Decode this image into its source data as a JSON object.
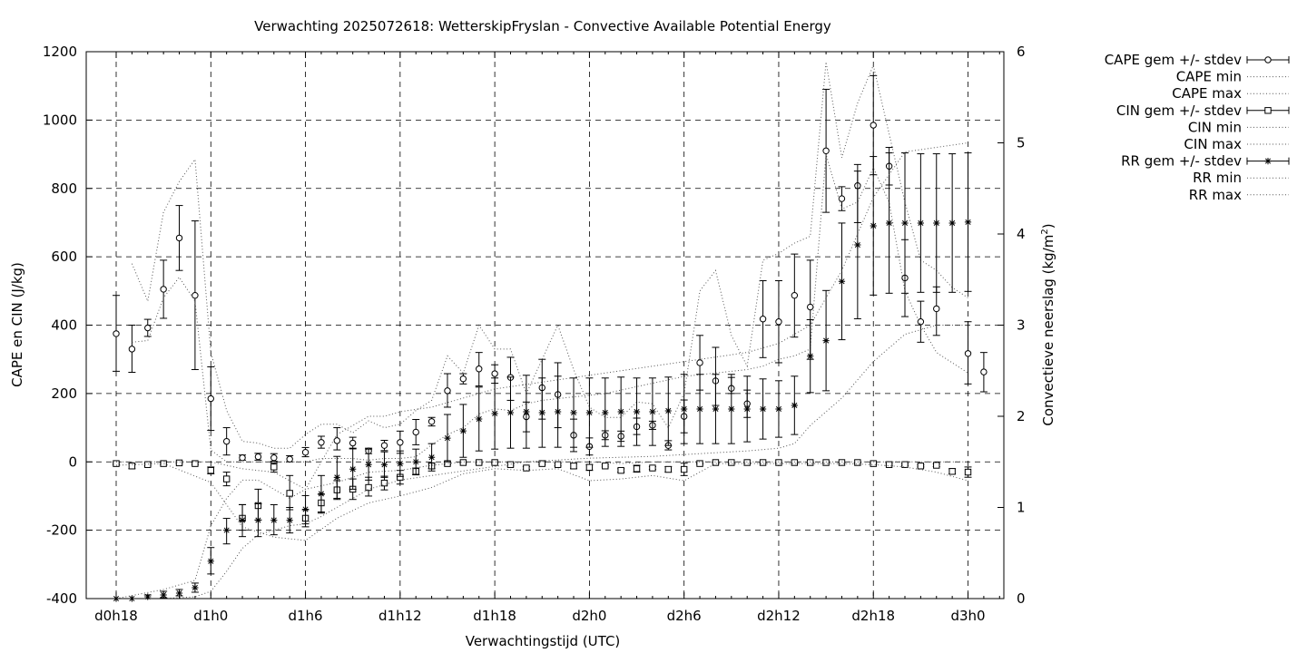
{
  "chart_data": {
    "type": "line",
    "title": "Verwachting 2025072618: WetterskipFryslan - Convective Available Potential Energy",
    "xlabel": "Verwachtingstijd (UTC)",
    "ylabel": "CAPE en CIN (J/kg)",
    "y2label_main": "Convectieve neerslag (kg/m",
    "y2label_sup": "2",
    "y2label_end": ")",
    "x_unit": "hours since d0h18",
    "xlim": [
      -0.5,
      57.5
    ],
    "ylim": [
      -400,
      1200
    ],
    "y2lim": [
      0,
      6
    ],
    "grid": true,
    "legend_position": "top-right outside",
    "x_ticks": [
      {
        "x": 0,
        "label": "d0h18"
      },
      {
        "x": 6,
        "label": "d1h0"
      },
      {
        "x": 12,
        "label": "d1h6"
      },
      {
        "x": 18,
        "label": "d1h12"
      },
      {
        "x": 24,
        "label": "d1h18"
      },
      {
        "x": 30,
        "label": "d2h0"
      },
      {
        "x": 36,
        "label": "d2h6"
      },
      {
        "x": 42,
        "label": "d2h12"
      },
      {
        "x": 48,
        "label": "d2h18"
      },
      {
        "x": 54,
        "label": "d3h0"
      }
    ],
    "y_ticks": [
      "-400",
      "-200",
      "0",
      "200",
      "400",
      "600",
      "800",
      "1000",
      "1200"
    ],
    "y2_ticks": [
      "0",
      "1",
      "2",
      "3",
      "4",
      "5",
      "6"
    ],
    "legend": [
      "CAPE gem +/- stdev",
      "CAPE min",
      "CAPE max",
      "CIN gem +/- stdev",
      "CIN min",
      "CIN max",
      "RR gem +/- stdev",
      "RR min",
      "RR max"
    ],
    "series": [
      {
        "name": "CAPE gem +/- stdev",
        "marker": "circle",
        "axis": "y",
        "x": [
          0,
          1,
          2,
          3,
          4,
          5,
          6,
          7,
          8,
          9,
          10,
          11,
          12,
          13,
          14,
          15,
          16,
          17,
          18,
          19,
          20,
          21,
          22,
          23,
          24,
          25,
          26,
          27,
          28,
          29,
          30,
          31,
          32,
          33,
          34,
          35,
          36,
          37,
          38,
          39,
          40,
          41,
          42,
          43,
          44,
          45,
          46,
          47,
          48,
          49,
          50,
          51,
          52,
          54,
          55
        ],
        "mean": [
          375,
          330,
          392,
          505,
          655,
          487,
          185,
          60,
          12,
          15,
          12,
          8,
          28,
          57,
          62,
          55,
          32,
          48,
          57,
          87,
          118,
          208,
          243,
          272,
          258,
          247,
          132,
          217,
          197,
          78,
          45,
          78,
          75,
          103,
          107,
          48,
          133,
          290,
          237,
          215,
          170,
          418,
          410,
          487,
          453,
          910,
          770,
          808,
          985,
          865,
          538,
          410,
          448,
          317,
          263
        ],
        "low": [
          265,
          262,
          367,
          420,
          560,
          270,
          92,
          20,
          5,
          5,
          2,
          0,
          15,
          40,
          35,
          38,
          24,
          33,
          25,
          50,
          105,
          160,
          228,
          222,
          230,
          180,
          88,
          125,
          100,
          30,
          20,
          65,
          60,
          80,
          95,
          35,
          85,
          210,
          165,
          200,
          130,
          305,
          290,
          365,
          300,
          730,
          735,
          700,
          840,
          810,
          425,
          350,
          370,
          228,
          205
        ],
        "high": [
          487,
          400,
          417,
          590,
          750,
          705,
          278,
          100,
          20,
          25,
          24,
          18,
          42,
          75,
          100,
          72,
          40,
          63,
          90,
          124,
          130,
          258,
          258,
          320,
          284,
          306,
          175,
          300,
          290,
          125,
          70,
          91,
          90,
          128,
          119,
          62,
          181,
          370,
          335,
          247,
          210,
          530,
          530,
          608,
          590,
          1090,
          805,
          870,
          1130,
          920,
          650,
          470,
          512,
          410,
          320
        ]
      },
      {
        "name": "CAPE max",
        "marker": "none",
        "axis": "y",
        "x": [
          1,
          2,
          3,
          4,
          5,
          6,
          7,
          8,
          9,
          10,
          11,
          12,
          13,
          14,
          15,
          16,
          17,
          18,
          19,
          20,
          21,
          22,
          23,
          24,
          25,
          26,
          27,
          28,
          29,
          30,
          31,
          32,
          33,
          34,
          35,
          36,
          37,
          38,
          39,
          40,
          41,
          42,
          43,
          44,
          45,
          46,
          47,
          48,
          49,
          50,
          51,
          52,
          53,
          54
        ],
        "y": [
          580,
          470,
          730,
          820,
          885,
          320,
          150,
          60,
          55,
          40,
          40,
          80,
          110,
          110,
          85,
          120,
          100,
          110,
          150,
          180,
          310,
          260,
          400,
          330,
          330,
          200,
          300,
          400,
          270,
          160,
          130,
          130,
          175,
          170,
          100,
          200,
          500,
          560,
          370,
          280,
          590,
          610,
          640,
          660,
          1170,
          890,
          1050,
          1160,
          960,
          760,
          590,
          560,
          510,
          480
        ]
      },
      {
        "name": "CAPE min",
        "marker": "none",
        "axis": "y",
        "x": [
          1,
          2,
          3,
          4,
          5,
          6,
          7,
          8,
          9,
          10,
          11,
          12,
          13,
          14,
          15,
          16,
          17,
          18,
          19,
          20,
          21,
          22,
          23,
          24,
          25,
          26,
          27,
          28,
          29,
          30,
          31,
          32,
          33,
          34,
          35,
          36,
          37,
          38,
          39,
          40,
          41,
          42,
          43,
          44,
          45,
          46,
          47,
          48,
          49,
          50,
          51,
          52,
          53,
          54
        ],
        "y": [
          350,
          355,
          480,
          540,
          470,
          35,
          0,
          0,
          0,
          0,
          0,
          0,
          10,
          10,
          10,
          5,
          10,
          10,
          15,
          50,
          80,
          100,
          140,
          155,
          150,
          170,
          180,
          185,
          190,
          195,
          200,
          210,
          220,
          230,
          240,
          250,
          255,
          260,
          265,
          270,
          280,
          300,
          310,
          330,
          900,
          740,
          760,
          860,
          760,
          500,
          400,
          320,
          290,
          260
        ]
      },
      {
        "name": "CIN gem +/- stdev",
        "marker": "square",
        "axis": "y",
        "x": [
          0,
          1,
          2,
          3,
          4,
          5,
          6,
          7,
          8,
          9,
          10,
          11,
          12,
          13,
          14,
          15,
          16,
          17,
          18,
          19,
          20,
          21,
          22,
          23,
          24,
          25,
          26,
          27,
          28,
          29,
          30,
          31,
          32,
          33,
          34,
          35,
          36,
          37,
          38,
          39,
          40,
          41,
          42,
          43,
          44,
          45,
          46,
          47,
          48,
          49,
          50,
          51,
          52,
          53,
          54
        ],
        "mean": [
          -5,
          -12,
          -8,
          -5,
          -3,
          -5,
          -25,
          -50,
          -165,
          -128,
          -15,
          -92,
          -165,
          -120,
          -82,
          -80,
          -75,
          -62,
          -45,
          -28,
          -12,
          -5,
          -2,
          -2,
          -2,
          -8,
          -18,
          -5,
          -8,
          -12,
          -16,
          -12,
          -25,
          -20,
          -18,
          -22,
          -22,
          -5,
          -2,
          -2,
          -2,
          -2,
          -2,
          -2,
          -2,
          -2,
          -2,
          -2,
          -5,
          -8,
          -8,
          -12,
          -10,
          -28,
          -30
        ],
        "low": [
          -8,
          -20,
          -12,
          -8,
          -5,
          -8,
          -35,
          -70,
          -200,
          -170,
          -30,
          -140,
          -190,
          -150,
          -110,
          -110,
          -100,
          -82,
          -65,
          -38,
          -20,
          -8,
          -4,
          -4,
          -4,
          -12,
          -22,
          -8,
          -12,
          -20,
          -25,
          -15,
          -30,
          -30,
          -22,
          -30,
          -40,
          -7,
          -3,
          -3,
          -3,
          -3,
          -3,
          -3,
          -3,
          -3,
          -3,
          -3,
          -7,
          -11,
          -11,
          -15,
          -14,
          -35,
          -45
        ],
        "high": [
          -2,
          -5,
          -4,
          -2,
          0,
          -2,
          -15,
          -30,
          -125,
          -80,
          -3,
          -40,
          -140,
          -95,
          -55,
          -50,
          -45,
          -42,
          -25,
          -18,
          -3,
          0,
          0,
          0,
          0,
          -4,
          -14,
          -2,
          -4,
          -5,
          -8,
          -9,
          -20,
          -10,
          -14,
          -14,
          -4,
          -3,
          -1,
          -1,
          -1,
          -1,
          -1,
          -1,
          -1,
          -1,
          -1,
          -1,
          -3,
          -5,
          -5,
          -9,
          -6,
          -20,
          -15
        ]
      },
      {
        "name": "CIN min",
        "marker": "none",
        "axis": "y",
        "x": [
          0,
          3,
          6,
          8,
          10,
          12,
          14,
          16,
          18,
          20,
          22,
          24,
          26,
          28,
          30,
          32,
          34,
          36,
          38,
          40,
          42,
          44,
          46,
          48,
          50,
          52,
          54
        ],
        "y": [
          -10,
          -5,
          -60,
          -190,
          -220,
          -230,
          -165,
          -120,
          -100,
          -75,
          -35,
          -20,
          -25,
          -20,
          -55,
          -50,
          -40,
          -55,
          -5,
          -5,
          -5,
          -5,
          -5,
          -8,
          -15,
          -30,
          -55
        ]
      },
      {
        "name": "CIN max",
        "marker": "none",
        "axis": "y",
        "x": [
          0,
          6,
          8,
          10,
          12,
          14,
          16,
          18,
          20,
          22,
          24,
          26,
          28,
          30,
          32,
          34,
          36,
          38,
          40,
          42,
          44,
          46,
          48,
          50,
          52,
          54
        ],
        "y": [
          0,
          0,
          -20,
          -30,
          -80,
          -60,
          -30,
          -25,
          -10,
          0,
          0,
          0,
          0,
          0,
          -5,
          0,
          0,
          0,
          0,
          0,
          0,
          0,
          0,
          0,
          0,
          0
        ]
      },
      {
        "name": "RR gem +/- stdev",
        "marker": "star",
        "axis": "y2",
        "x": [
          0,
          1,
          2,
          3,
          4,
          5,
          6,
          7,
          8,
          9,
          10,
          11,
          12,
          13,
          14,
          15,
          16,
          17,
          18,
          19,
          20,
          21,
          22,
          23,
          24,
          25,
          26,
          27,
          28,
          29,
          30,
          31,
          32,
          33,
          34,
          35,
          36,
          37,
          38,
          39,
          40,
          41,
          42,
          43,
          44,
          45,
          46,
          47,
          48,
          49,
          50,
          51,
          52,
          53,
          54
        ],
        "mean": [
          0.0,
          0.0,
          0.02,
          0.04,
          0.06,
          0.12,
          0.41,
          0.75,
          0.86,
          0.86,
          0.86,
          0.86,
          0.98,
          1.15,
          1.33,
          1.42,
          1.47,
          1.47,
          1.48,
          1.5,
          1.55,
          1.76,
          1.84,
          1.97,
          2.03,
          2.04,
          2.05,
          2.04,
          2.05,
          2.04,
          2.04,
          2.04,
          2.05,
          2.05,
          2.05,
          2.06,
          2.08,
          2.08,
          2.08,
          2.08,
          2.08,
          2.08,
          2.08,
          2.12,
          2.66,
          2.83,
          3.48,
          3.88,
          4.09,
          4.12,
          4.12,
          4.12,
          4.12,
          4.12,
          4.13
        ],
        "low": [
          0,
          0,
          0,
          0.01,
          0.03,
          0.07,
          0.27,
          0.6,
          0.68,
          0.68,
          0.7,
          0.72,
          0.82,
          0.95,
          1.1,
          1.2,
          1.3,
          1.33,
          1.34,
          1.36,
          1.4,
          1.5,
          1.55,
          1.62,
          1.64,
          1.65,
          1.65,
          1.66,
          1.66,
          1.66,
          1.66,
          1.67,
          1.67,
          1.68,
          1.68,
          1.68,
          1.7,
          1.7,
          1.7,
          1.7,
          1.72,
          1.75,
          1.77,
          1.8,
          2.26,
          2.28,
          2.84,
          3.07,
          3.33,
          3.35,
          3.35,
          3.36,
          3.36,
          3.36,
          3.37
        ],
        "high": [
          0,
          0,
          0.04,
          0.08,
          0.1,
          0.17,
          0.56,
          0.88,
          1.03,
          1.04,
          1.03,
          1.0,
          1.13,
          1.35,
          1.56,
          1.65,
          1.64,
          1.61,
          1.62,
          1.64,
          1.7,
          2.02,
          2.13,
          2.32,
          2.42,
          2.43,
          2.45,
          2.42,
          2.44,
          2.42,
          2.42,
          2.42,
          2.43,
          2.42,
          2.42,
          2.43,
          2.46,
          2.46,
          2.46,
          2.46,
          2.44,
          2.41,
          2.39,
          2.44,
          3.06,
          3.38,
          4.12,
          4.69,
          4.85,
          4.89,
          4.89,
          4.88,
          4.88,
          4.88,
          4.89
        ]
      },
      {
        "name": "RR min",
        "marker": "none",
        "axis": "y2",
        "x": [
          0,
          3,
          5,
          6,
          7,
          8,
          9,
          10,
          11,
          12,
          13,
          14,
          15,
          16,
          17,
          18,
          20,
          22,
          24,
          26,
          28,
          30,
          32,
          34,
          36,
          38,
          40,
          42,
          43,
          44,
          46,
          48,
          50,
          52,
          54
        ],
        "y": [
          0,
          0,
          0.02,
          0.08,
          0.3,
          0.55,
          0.7,
          0.75,
          0.8,
          0.82,
          0.9,
          1.0,
          1.1,
          1.2,
          1.25,
          1.3,
          1.35,
          1.4,
          1.45,
          1.5,
          1.52,
          1.54,
          1.55,
          1.56,
          1.58,
          1.6,
          1.62,
          1.65,
          1.7,
          1.9,
          2.2,
          2.6,
          2.9,
          3.0,
          3.0
        ]
      },
      {
        "name": "RR max",
        "marker": "none",
        "axis": "y2",
        "x": [
          0,
          3,
          5,
          6,
          7,
          8,
          9,
          10,
          11,
          12,
          13,
          14,
          15,
          16,
          17,
          18,
          20,
          22,
          24,
          26,
          28,
          30,
          32,
          34,
          36,
          38,
          40,
          42,
          44,
          46,
          48,
          50,
          52,
          54
        ],
        "y": [
          0,
          0.1,
          0.2,
          0.8,
          1.1,
          1.3,
          1.3,
          1.2,
          1.1,
          1.2,
          1.5,
          1.8,
          1.9,
          2.0,
          2.0,
          2.05,
          2.1,
          2.2,
          2.3,
          2.35,
          2.4,
          2.45,
          2.5,
          2.55,
          2.6,
          2.65,
          2.7,
          2.8,
          3.0,
          3.6,
          4.4,
          4.9,
          4.95,
          5.0
        ]
      }
    ]
  }
}
